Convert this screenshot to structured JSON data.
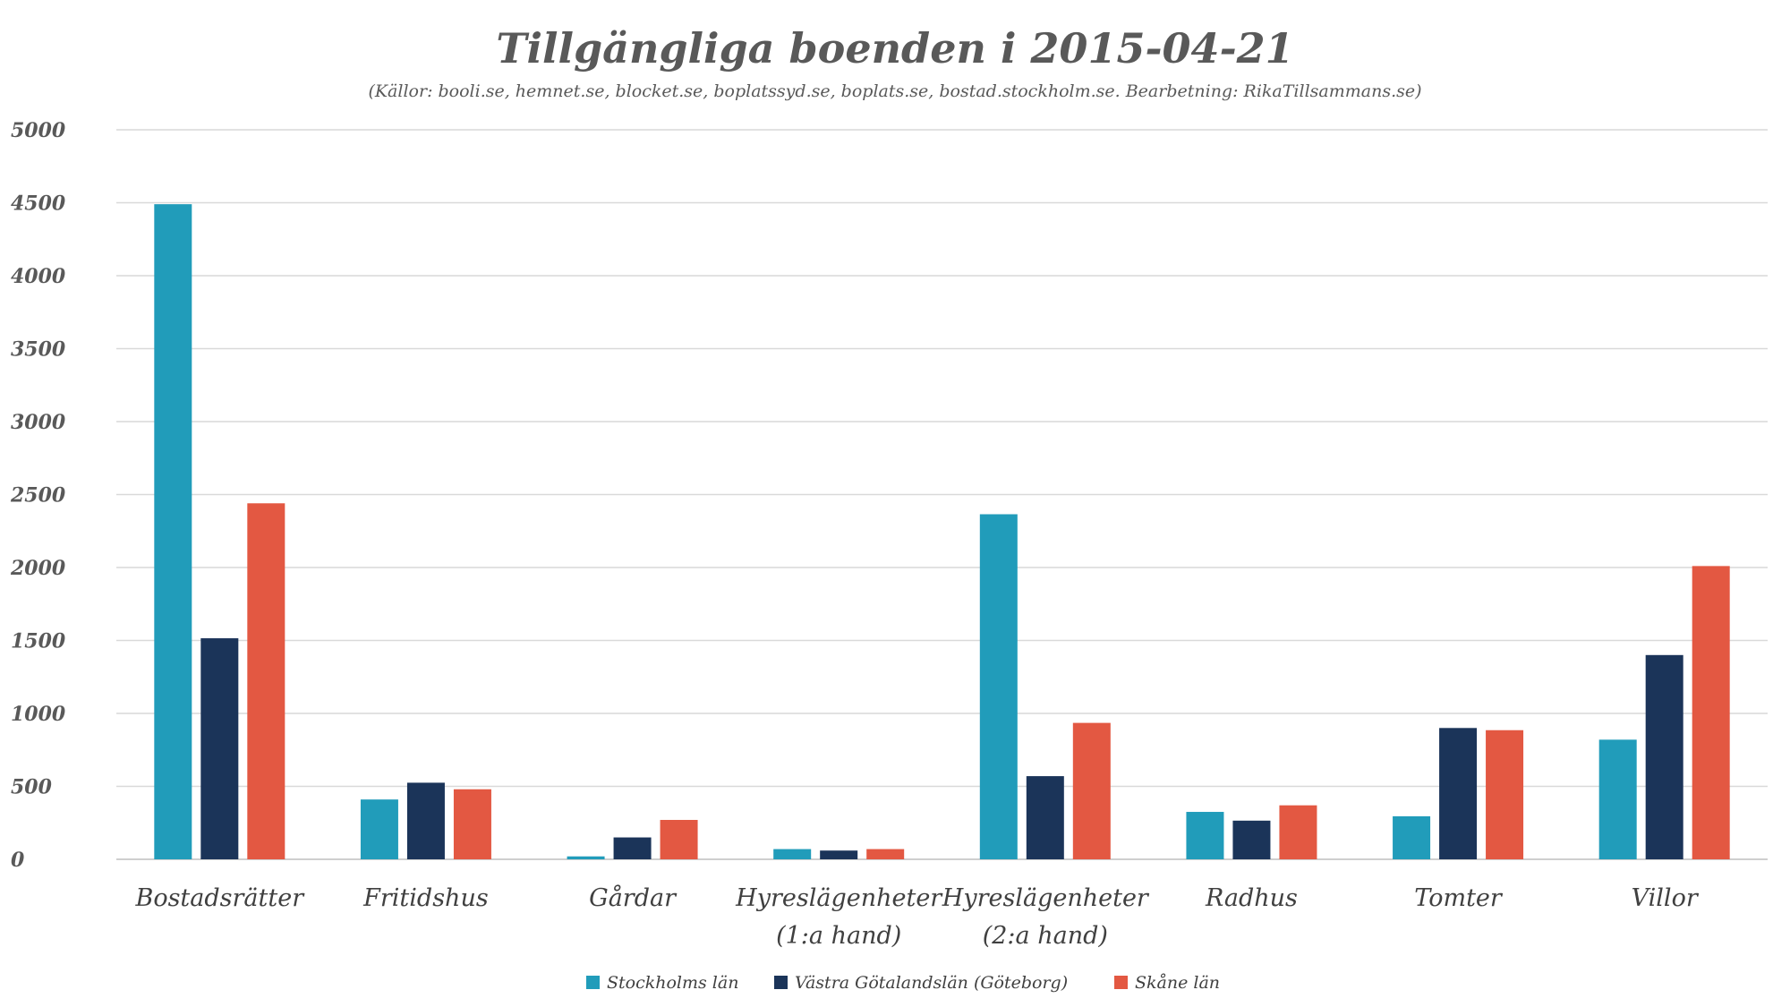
{
  "chart_data": {
    "type": "bar",
    "title": "Tillgängliga boenden i 2015-04-21",
    "subtitle": "(Källor: booli.se, hemnet.se, blocket.se, boplatssyd.se, boplats.se, bostad.stockholm.se. Bearbetning: RikaTillsammans.se)",
    "categories": [
      [
        "Bostadsrätter"
      ],
      [
        "Fritidshus"
      ],
      [
        "Gårdar"
      ],
      [
        "Hyreslägenheter",
        "(1:a hand)"
      ],
      [
        "Hyreslägenheter",
        "(2:a hand)"
      ],
      [
        "Radhus"
      ],
      [
        "Tomter"
      ],
      [
        "Villor"
      ]
    ],
    "ylim": [
      0,
      5000
    ],
    "yticks": [
      "0",
      "500",
      "1000",
      "1500",
      "2000",
      "2500",
      "3000",
      "3500",
      "4000",
      "4500",
      "5000"
    ],
    "grid": true,
    "legend_position": "bottom",
    "series": [
      {
        "name": "Stockholms län",
        "color": "#219cba",
        "values": [
          4490,
          410,
          20,
          70,
          2365,
          325,
          295,
          820
        ]
      },
      {
        "name": "Västra Götalandslän (Göteborg)",
        "color": "#1b3459",
        "values": [
          1515,
          525,
          150,
          60,
          570,
          265,
          900,
          1400
        ]
      },
      {
        "name": "Skåne län",
        "color": "#e35842",
        "values": [
          2440,
          480,
          270,
          70,
          935,
          370,
          885,
          2010
        ]
      }
    ]
  }
}
